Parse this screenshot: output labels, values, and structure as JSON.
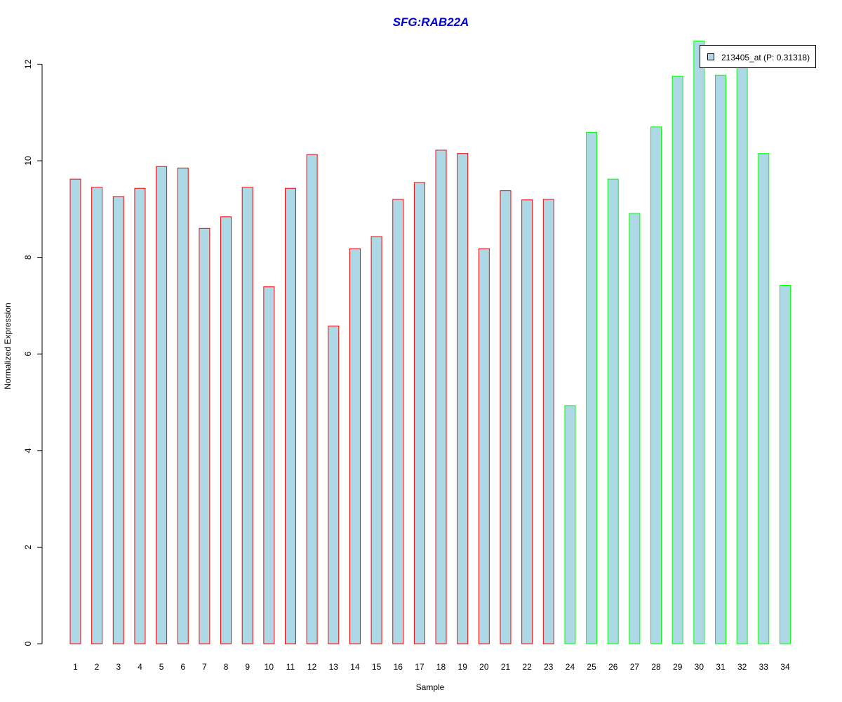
{
  "chart_data": {
    "type": "bar",
    "title": "SFG:RAB22A",
    "xlabel": "Sample",
    "ylabel": "Normalized Expression",
    "categories": [
      "1",
      "2",
      "3",
      "4",
      "5",
      "6",
      "7",
      "8",
      "9",
      "10",
      "11",
      "12",
      "13",
      "14",
      "15",
      "16",
      "17",
      "18",
      "19",
      "20",
      "21",
      "22",
      "23",
      "24",
      "25",
      "26",
      "27",
      "28",
      "29",
      "30",
      "31",
      "32",
      "33",
      "34"
    ],
    "series": [
      {
        "name": "213405_at (P: 0.31318)",
        "values": [
          9.62,
          9.45,
          9.26,
          9.43,
          9.88,
          9.85,
          8.6,
          8.84,
          9.45,
          7.39,
          9.43,
          10.13,
          6.58,
          8.18,
          8.43,
          9.2,
          9.55,
          10.22,
          10.15,
          8.18,
          9.38,
          9.19,
          9.2,
          4.93,
          10.59,
          9.62,
          8.91,
          10.7,
          11.75,
          12.48,
          11.77,
          12.02,
          10.15,
          7.42
        ]
      }
    ],
    "groups": [
      {
        "samples": "1-23",
        "border_color": "#ff0000"
      },
      {
        "samples": "24-34",
        "border_color": "#00ff00"
      }
    ],
    "group_split_index": 23,
    "bar_fill": "#add8e6",
    "title_color": "#0000cc",
    "yticks": [
      0,
      2,
      4,
      6,
      8,
      10,
      12
    ],
    "ylim": [
      0,
      12.5
    ],
    "grid": false,
    "legend_position": "top-right"
  }
}
